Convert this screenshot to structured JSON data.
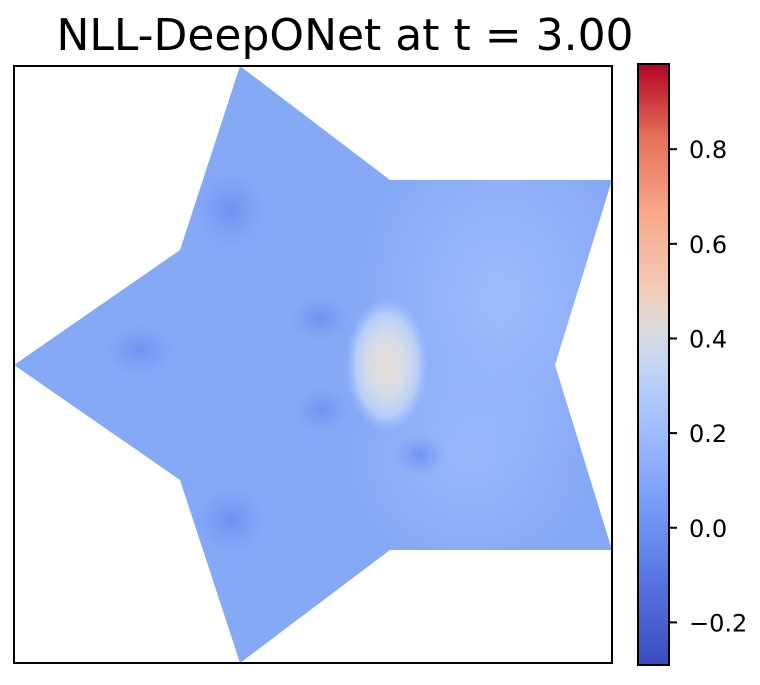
{
  "chart_data": {
    "type": "heatmap",
    "title": "NLL-DeepONet at t = 3.00",
    "xlabel": "",
    "ylabel": "",
    "axes_ticks_visible": false,
    "domain_shape": "five-pointed star",
    "field_description": "mostly near-zero values (about 0.0–0.1) over the star with a central peak of about 0.4",
    "central_peak_value": 0.4,
    "background_value": 0.05,
    "colormap": "coolwarm",
    "colorbar": {
      "min": -0.29,
      "max": 0.98,
      "ticks": [
        -0.2,
        0.0,
        0.2,
        0.4,
        0.6,
        0.8
      ],
      "tick_labels": [
        "−0.2",
        "0.0",
        "0.2",
        "0.4",
        "0.6",
        "0.8"
      ]
    },
    "colors": {
      "low": "#3b4cc0",
      "mid": "#dddcdc",
      "high": "#b40426",
      "field_base": "#86a9f6"
    }
  }
}
